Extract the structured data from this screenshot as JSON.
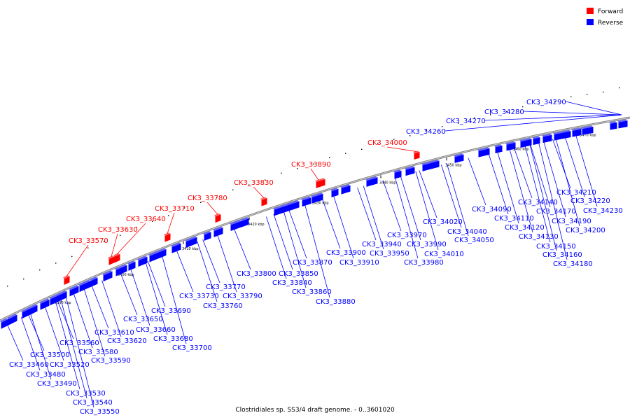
{
  "legend": {
    "forward_label": "Forward",
    "reverse_label": "Reverse",
    "forward_color": "#ff0000",
    "reverse_color": "#0000ff"
  },
  "caption": "Clostridiales sp. SS3/4 draft genome. - 0..3601020",
  "axis_ticks": [
    "3390 kbp",
    "3400 kbp",
    "3410 kbp",
    "3420 kbp",
    "3430 kbp",
    "3440 kbp",
    "3450 kbp",
    "3460 kbp",
    "3470 kbp"
  ],
  "forward_genes": [
    "CK3_33570",
    "CK3_33630",
    "CK3_33640",
    "CK3_33710",
    "CK3_33780",
    "CK3_33830",
    "CK3_33890",
    "CK3_34000"
  ],
  "reverse_genes": [
    "CK3_33460",
    "CK3_33480",
    "CK3_33490",
    "CK3_33500",
    "CK3_33520",
    "CK3_33530",
    "CK3_33540",
    "CK3_33550",
    "CK3_33560",
    "CK3_33580",
    "CK3_33590",
    "CK3_33610",
    "CK3_33620",
    "CK3_33650",
    "CK3_33660",
    "CK3_33680",
    "CK3_33690",
    "CK3_33700",
    "CK3_33730",
    "CK3_33760",
    "CK3_33770",
    "CK3_33790",
    "CK3_33800",
    "CK3_33840",
    "CK3_33850",
    "CK3_33860",
    "CK3_33870",
    "CK3_33880",
    "CK3_33900",
    "CK3_33910",
    "CK3_33940",
    "CK3_33950",
    "CK3_33970",
    "CK3_33980",
    "CK3_33990",
    "CK3_34010",
    "CK3_34020",
    "CK3_34040",
    "CK3_34050",
    "CK3_34090",
    "CK3_34110",
    "CK3_34120",
    "CK3_34130",
    "CK3_34140",
    "CK3_34150",
    "CK3_34160",
    "CK3_34170",
    "CK3_34180",
    "CK3_34190",
    "CK3_34200",
    "CK3_34210",
    "CK3_34220",
    "CK3_34230",
    "CK3_34260",
    "CK3_34270",
    "CK3_34280",
    "CK3_34290"
  ]
}
